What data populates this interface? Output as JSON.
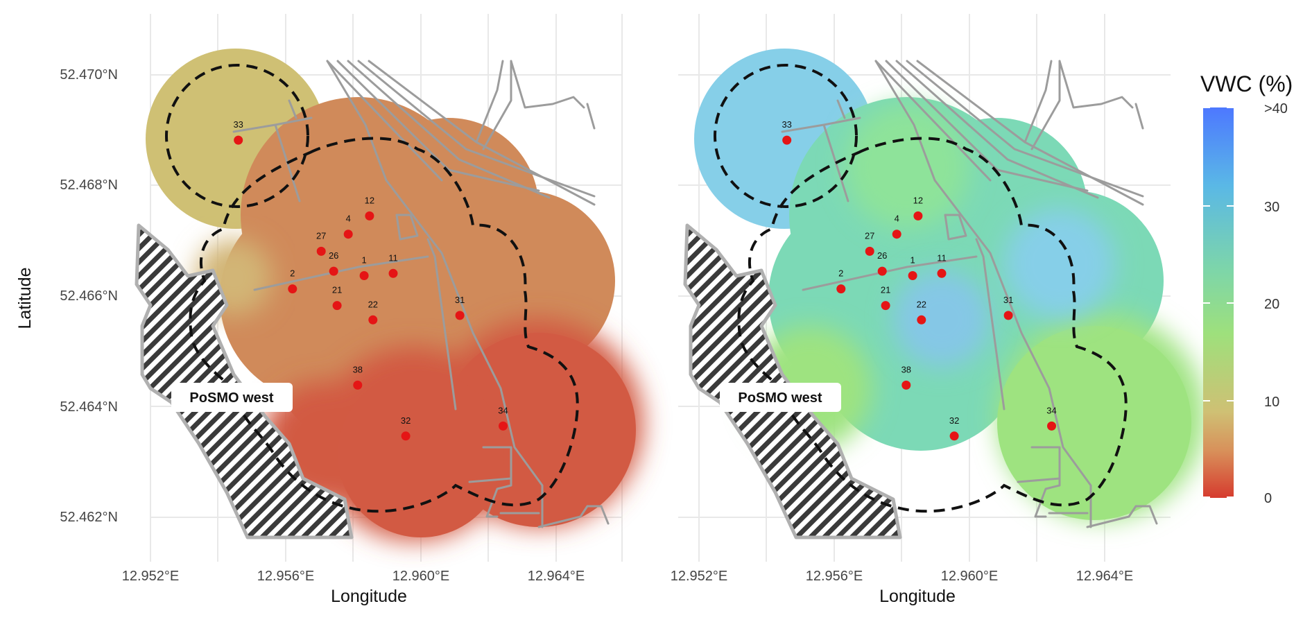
{
  "figure": {
    "y_axis_title": "Latitude",
    "x_axis_title": "Longitude",
    "lat_ticks": [
      "52.470°N",
      "52.468°N",
      "52.466°N",
      "52.464°N",
      "52.462°N"
    ],
    "lon_ticks": [
      "12.952°E",
      "12.956°E",
      "12.960°E",
      "12.964°E"
    ],
    "area_label": "PoSMO west"
  },
  "legend": {
    "title": "VWC (%)",
    "ticks": [
      ">40",
      "30",
      "20",
      "10",
      "0"
    ],
    "gradient": [
      "#4d78ff",
      "#5ab8e6",
      "#7ed6a8",
      "#9ee07c",
      "#cfc074",
      "#d8905a",
      "#d63b2e"
    ]
  },
  "sensors": [
    {
      "id": "33",
      "lon": 12.9546,
      "lat": 52.46882
    },
    {
      "id": "12",
      "lon": 12.95848,
      "lat": 52.46745
    },
    {
      "id": "4",
      "lon": 12.95785,
      "lat": 52.46712
    },
    {
      "id": "27",
      "lon": 12.95705,
      "lat": 52.46681
    },
    {
      "id": "26",
      "lon": 12.95742,
      "lat": 52.46645
    },
    {
      "id": "1",
      "lon": 12.95832,
      "lat": 52.46637
    },
    {
      "id": "11",
      "lon": 12.95918,
      "lat": 52.46641
    },
    {
      "id": "2",
      "lon": 12.9562,
      "lat": 52.46613
    },
    {
      "id": "21",
      "lon": 12.95752,
      "lat": 52.46583
    },
    {
      "id": "22",
      "lon": 12.95858,
      "lat": 52.46557
    },
    {
      "id": "31",
      "lon": 12.96115,
      "lat": 52.46565
    },
    {
      "id": "38",
      "lon": 12.95813,
      "lat": 52.46439
    },
    {
      "id": "32",
      "lon": 12.95955,
      "lat": 52.46347
    },
    {
      "id": "34",
      "lon": 12.96243,
      "lat": 52.46365
    }
  ],
  "maps": [
    {
      "name": "left",
      "surface_colors": {
        "buffer_33": "#cfc074",
        "core": "#d08a5a",
        "south_east": "#d25a43",
        "west_fringe": "#d2b576"
      }
    },
    {
      "name": "right",
      "surface_colors": {
        "buffer_33": "#86cfe8",
        "core": "#7cd9b6",
        "south_east": "#9ee380",
        "west_fringe": "#8ee39a"
      }
    }
  ],
  "colors": {
    "sensor": "#e51515",
    "road": "#9c9c9c",
    "grid": "#e8e8e8",
    "boundary": "#111111"
  }
}
